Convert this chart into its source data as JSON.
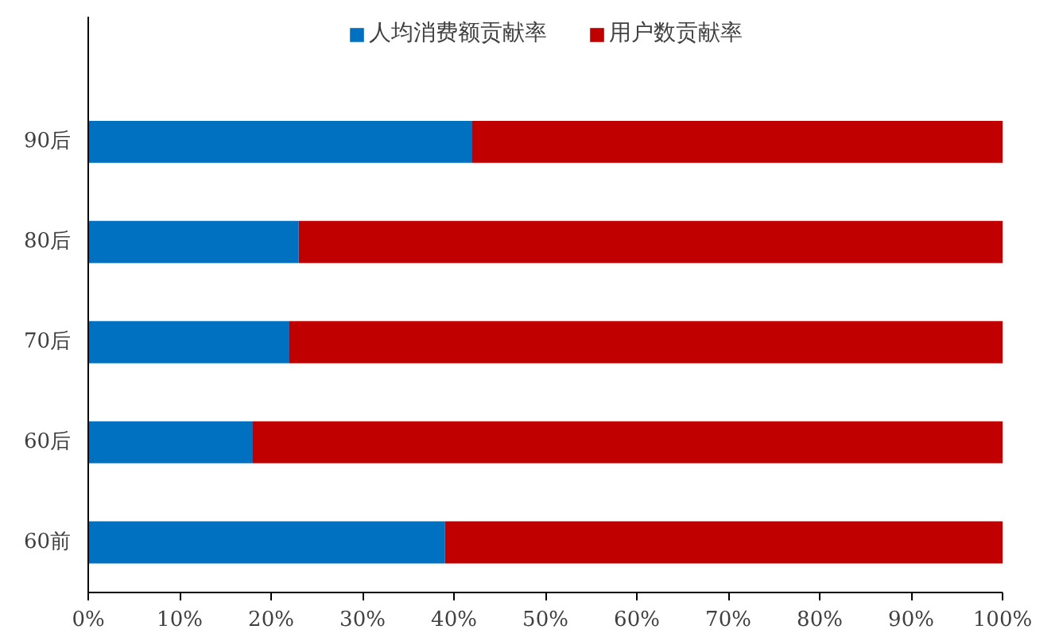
{
  "chart_data": {
    "type": "bar",
    "orientation": "horizontal",
    "stacked": true,
    "categories": [
      "90后",
      "80后",
      "70后",
      "60后",
      "60前"
    ],
    "series": [
      {
        "name": "人均消费额贡献率",
        "color": "#0070c0",
        "values": [
          42,
          23,
          22,
          18,
          39
        ]
      },
      {
        "name": "用户数贡献率",
        "color": "#c00000",
        "values": [
          58,
          77,
          78,
          82,
          61
        ]
      }
    ],
    "xlim": [
      0,
      100
    ],
    "xticks": [
      {
        "value": 0,
        "label": "0%"
      },
      {
        "value": 10,
        "label": "10%"
      },
      {
        "value": 20,
        "label": "20%"
      },
      {
        "value": 30,
        "label": "30%"
      },
      {
        "value": 40,
        "label": "40%"
      },
      {
        "value": 50,
        "label": "50%"
      },
      {
        "value": 60,
        "label": "60%"
      },
      {
        "value": 70,
        "label": "70%"
      },
      {
        "value": 80,
        "label": "80%"
      },
      {
        "value": 90,
        "label": "90%"
      },
      {
        "value": 100,
        "label": "100%"
      }
    ],
    "grid": false,
    "legend": "top"
  }
}
